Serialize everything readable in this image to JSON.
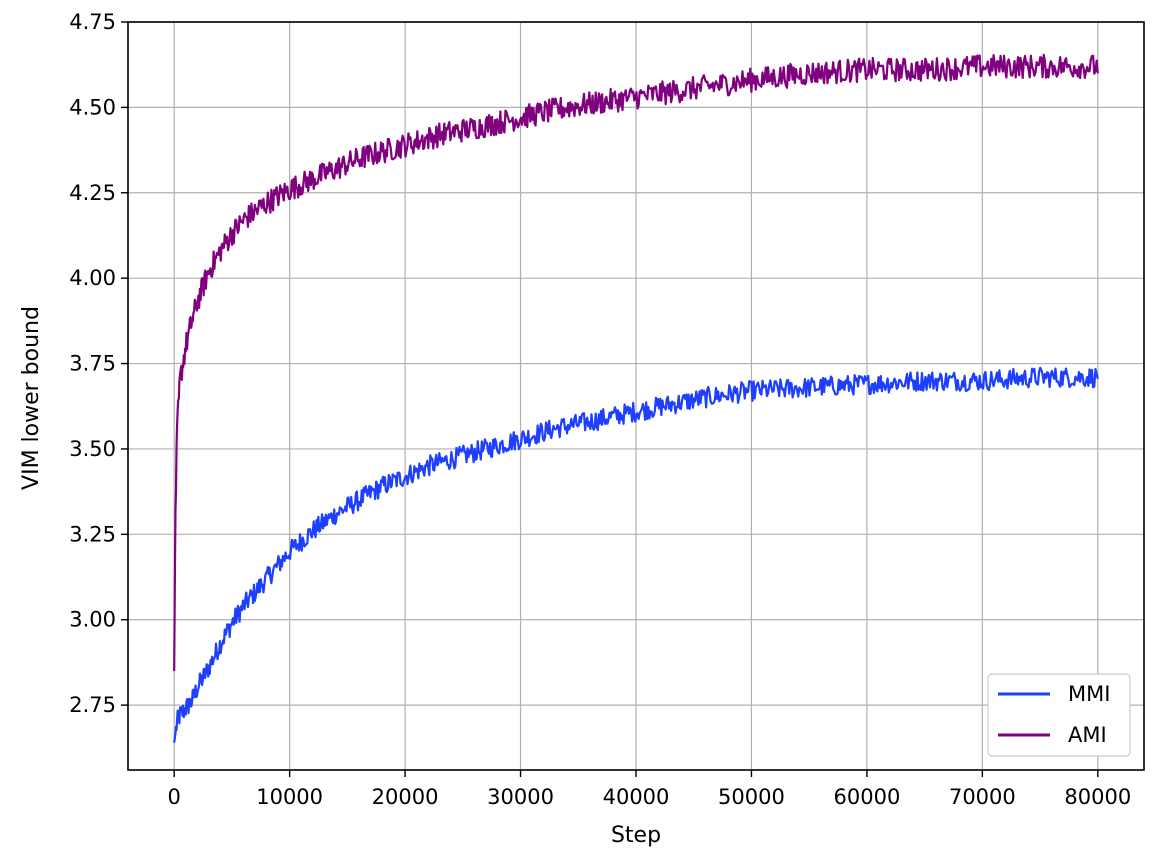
{
  "chart_data": {
    "type": "line",
    "title": "",
    "xlabel": "Step",
    "ylabel": "VIM lower bound",
    "xlim": [
      -4000,
      84000
    ],
    "ylim": [
      2.56,
      4.75
    ],
    "x_ticks": [
      0,
      10000,
      20000,
      30000,
      40000,
      50000,
      60000,
      70000,
      80000
    ],
    "y_ticks": [
      2.75,
      3.0,
      3.25,
      3.5,
      3.75,
      4.0,
      4.25,
      4.5,
      4.75
    ],
    "x_tick_labels": [
      "0",
      "10000",
      "20000",
      "30000",
      "40000",
      "50000",
      "60000",
      "70000",
      "80000"
    ],
    "y_tick_labels": [
      "2.75",
      "3.00",
      "3.25",
      "3.50",
      "3.75",
      "4.00",
      "4.25",
      "4.50",
      "4.75"
    ],
    "grid": true,
    "legend_position": "bottom-right",
    "series": [
      {
        "name": "MMI",
        "color": "#1f3fff",
        "points": [
          [
            0,
            2.64
          ],
          [
            250,
            2.7
          ],
          [
            500,
            2.72
          ],
          [
            1000,
            2.74
          ],
          [
            1500,
            2.76
          ],
          [
            2000,
            2.8
          ],
          [
            3000,
            2.86
          ],
          [
            4000,
            2.93
          ],
          [
            5000,
            2.99
          ],
          [
            6000,
            3.04
          ],
          [
            7000,
            3.08
          ],
          [
            8000,
            3.12
          ],
          [
            10000,
            3.2
          ],
          [
            12000,
            3.26
          ],
          [
            14000,
            3.31
          ],
          [
            16000,
            3.35
          ],
          [
            18000,
            3.39
          ],
          [
            20000,
            3.42
          ],
          [
            22000,
            3.45
          ],
          [
            25000,
            3.48
          ],
          [
            28000,
            3.51
          ],
          [
            30000,
            3.53
          ],
          [
            33000,
            3.56
          ],
          [
            36000,
            3.58
          ],
          [
            40000,
            3.61
          ],
          [
            43000,
            3.63
          ],
          [
            46000,
            3.65
          ],
          [
            50000,
            3.67
          ],
          [
            55000,
            3.68
          ],
          [
            60000,
            3.69
          ],
          [
            65000,
            3.7
          ],
          [
            70000,
            3.7
          ],
          [
            75000,
            3.71
          ],
          [
            80000,
            3.71
          ]
        ],
        "noise": 0.03
      },
      {
        "name": "AMI",
        "color": "#800080",
        "points": [
          [
            0,
            2.85
          ],
          [
            100,
            3.3
          ],
          [
            250,
            3.55
          ],
          [
            500,
            3.7
          ],
          [
            1000,
            3.8
          ],
          [
            1500,
            3.87
          ],
          [
            2000,
            3.93
          ],
          [
            3000,
            4.02
          ],
          [
            4000,
            4.08
          ],
          [
            5000,
            4.13
          ],
          [
            6000,
            4.17
          ],
          [
            8000,
            4.22
          ],
          [
            10000,
            4.26
          ],
          [
            12000,
            4.29
          ],
          [
            14000,
            4.32
          ],
          [
            16000,
            4.35
          ],
          [
            18000,
            4.37
          ],
          [
            20000,
            4.39
          ],
          [
            23000,
            4.42
          ],
          [
            26000,
            4.44
          ],
          [
            30000,
            4.47
          ],
          [
            34000,
            4.5
          ],
          [
            38000,
            4.52
          ],
          [
            42000,
            4.54
          ],
          [
            46000,
            4.56
          ],
          [
            50000,
            4.58
          ],
          [
            55000,
            4.6
          ],
          [
            60000,
            4.61
          ],
          [
            65000,
            4.61
          ],
          [
            70000,
            4.62
          ],
          [
            75000,
            4.62
          ],
          [
            80000,
            4.62
          ]
        ],
        "noise": 0.035
      }
    ]
  }
}
